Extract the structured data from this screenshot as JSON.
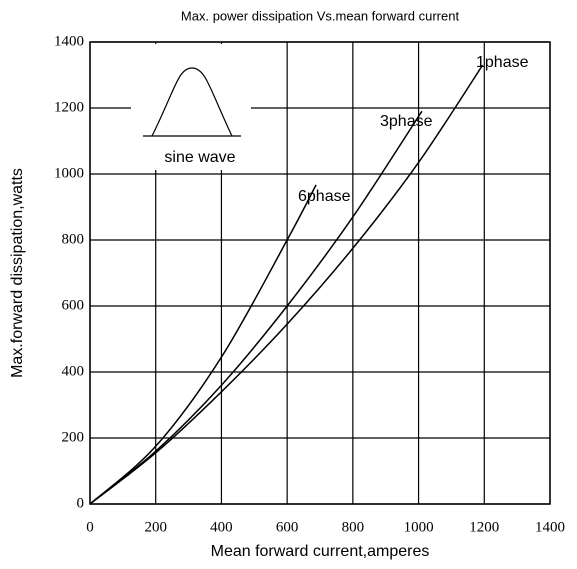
{
  "chart_data": {
    "type": "line",
    "title": "Max. power dissipation  Vs.mean forward current",
    "xlabel": "Mean forward  current,amperes",
    "ylabel": "Max.forward  dissipation,watts",
    "annotation": "sine wave",
    "series": [
      {
        "name": "1phase",
        "color": "#000000",
        "x": [
          0,
          200,
          400,
          600,
          800,
          1000,
          1195
        ],
        "values": [
          0,
          155,
          340,
          545,
          775,
          1035,
          1330
        ]
      },
      {
        "name": "3phase",
        "color": "#000000",
        "x": [
          0,
          200,
          400,
          600,
          800,
          1010
        ],
        "values": [
          0,
          160,
          360,
          600,
          870,
          1190
        ]
      },
      {
        "name": "6phase",
        "color": "#000000",
        "x": [
          0,
          200,
          400,
          600,
          688
        ],
        "values": [
          0,
          175,
          445,
          800,
          967
        ]
      }
    ],
    "xlim": [
      0,
      1400
    ],
    "xticks": [
      0,
      200,
      400,
      600,
      800,
      1000,
      1200,
      1400
    ],
    "ylim": [
      0,
      1400
    ],
    "yticks": [
      0,
      200,
      400,
      600,
      800,
      1000,
      1200,
      1400
    ],
    "grid": true
  }
}
